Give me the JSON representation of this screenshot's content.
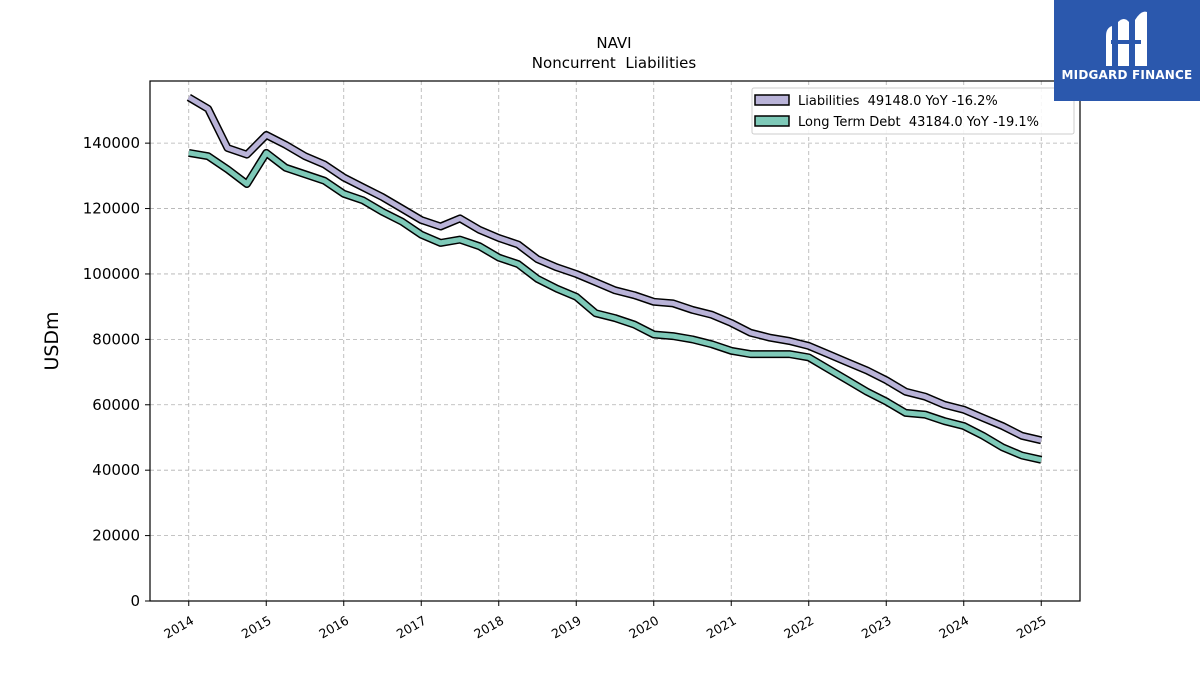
{
  "brand": {
    "name": "MIDGARD FINANCE",
    "logo_icon": "midgard-m-icon",
    "color": "#2b58ad"
  },
  "chart_data": {
    "type": "line",
    "title": "NAVI",
    "subtitle": "Noncurrent  Liabilities",
    "xlabel": "",
    "ylabel": "USDm",
    "xlim": [
      2013.5,
      2025.5
    ],
    "ylim": [
      0,
      159000
    ],
    "xticks": [
      2014,
      2015,
      2016,
      2017,
      2018,
      2019,
      2020,
      2021,
      2022,
      2023,
      2024,
      2025
    ],
    "yticks": [
      0,
      20000,
      40000,
      60000,
      80000,
      100000,
      120000,
      140000
    ],
    "grid": true,
    "legend_position": "top-right",
    "series": [
      {
        "name": "Liabilities  49148.0 YoY -16.2%",
        "color": "#b9b3d8",
        "x": [
          2014.0,
          2014.25,
          2014.5,
          2014.75,
          2015.0,
          2015.25,
          2015.5,
          2015.75,
          2016.0,
          2016.25,
          2016.5,
          2016.75,
          2017.0,
          2017.25,
          2017.5,
          2017.75,
          2018.0,
          2018.25,
          2018.5,
          2018.75,
          2019.0,
          2019.25,
          2019.5,
          2019.75,
          2020.0,
          2020.25,
          2020.5,
          2020.75,
          2021.0,
          2021.25,
          2021.5,
          2021.75,
          2022.0,
          2022.25,
          2022.5,
          2022.75,
          2023.0,
          2023.25,
          2023.5,
          2023.75,
          2024.0,
          2024.25,
          2024.5,
          2024.75,
          2025.0
        ],
        "values": [
          154000,
          150500,
          138500,
          136500,
          142500,
          139500,
          136000,
          133500,
          129500,
          126500,
          123500,
          120000,
          116500,
          114500,
          117000,
          113500,
          111000,
          109000,
          104500,
          102000,
          100000,
          97500,
          95000,
          93500,
          91500,
          91000,
          89000,
          87500,
          85000,
          82000,
          80500,
          79500,
          78000,
          75500,
          73000,
          70500,
          67500,
          64000,
          62500,
          60000,
          58500,
          56000,
          53500,
          50500,
          49148
        ]
      },
      {
        "name": "Long Term Debt  43184.0 YoY -19.1%",
        "color": "#7ec9b8",
        "x": [
          2014.0,
          2014.25,
          2014.5,
          2014.75,
          2015.0,
          2015.25,
          2015.5,
          2015.75,
          2016.0,
          2016.25,
          2016.5,
          2016.75,
          2017.0,
          2017.25,
          2017.5,
          2017.75,
          2018.0,
          2018.25,
          2018.5,
          2018.75,
          2019.0,
          2019.25,
          2019.5,
          2019.75,
          2020.0,
          2020.25,
          2020.5,
          2020.75,
          2021.0,
          2021.25,
          2021.5,
          2021.75,
          2022.0,
          2022.25,
          2022.5,
          2022.75,
          2023.0,
          2023.25,
          2023.5,
          2023.75,
          2024.0,
          2024.25,
          2024.5,
          2024.75,
          2025.0
        ],
        "values": [
          137000,
          136000,
          132000,
          127500,
          137000,
          132500,
          130500,
          128500,
          124500,
          122500,
          119000,
          116000,
          112000,
          109500,
          110500,
          108500,
          105000,
          103000,
          98500,
          95500,
          93000,
          88000,
          86500,
          84500,
          81500,
          81000,
          80000,
          78500,
          76500,
          75500,
          75500,
          75500,
          74500,
          71000,
          67500,
          64000,
          61000,
          57500,
          57000,
          55000,
          53500,
          50500,
          47000,
          44500,
          43184
        ]
      }
    ]
  }
}
